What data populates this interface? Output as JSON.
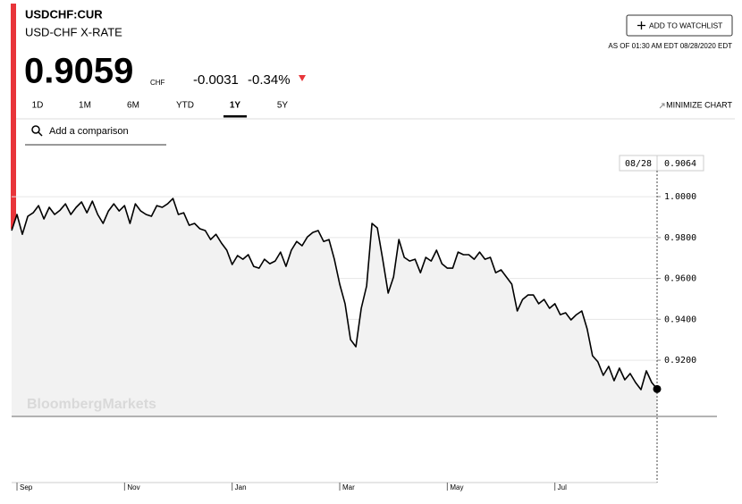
{
  "header": {
    "ticker": "USDCHF:CUR",
    "name": "USD-CHF X-RATE",
    "price": "0.9059",
    "currency": "CHF",
    "change": "-0.0031",
    "change_pct": "-0.34%",
    "watchlist_button": "ADD TO WATCHLIST",
    "as_of": "AS OF 01:30 AM EDT 08/28/2020 EDT"
  },
  "tabs": [
    "1D",
    "1M",
    "6M",
    "YTD",
    "1Y",
    "5Y"
  ],
  "active_tab": "1Y",
  "minimize": "MINIMIZE CHART",
  "search_placeholder": "Add a comparison",
  "watermark": "BloombergMarkets",
  "crosshair": {
    "date": "08/28",
    "value": "0.9064"
  },
  "chart_data": {
    "type": "line",
    "color": "#000000",
    "area_color": "#f2f2f2",
    "categories": [
      null,
      "Sep",
      null,
      null,
      null,
      null,
      null,
      null,
      null,
      null,
      null,
      null,
      null,
      null,
      null,
      null,
      null,
      null,
      null,
      null,
      null,
      "Nov",
      null,
      null,
      null,
      null,
      null,
      null,
      null,
      null,
      null,
      null,
      null,
      null,
      null,
      null,
      null,
      null,
      null,
      null,
      null,
      "Jan",
      null,
      null,
      null,
      null,
      null,
      null,
      null,
      null,
      null,
      null,
      null,
      null,
      null,
      null,
      null,
      null,
      null,
      null,
      null,
      "Mar",
      null,
      null,
      null,
      null,
      null,
      null,
      null,
      null,
      null,
      null,
      null,
      null,
      null,
      null,
      null,
      null,
      null,
      null,
      null,
      "May",
      null,
      null,
      null,
      null,
      null,
      null,
      null,
      null,
      null,
      null,
      null,
      null,
      null,
      null,
      null,
      null,
      null,
      null,
      null,
      "Jul",
      null,
      null,
      null,
      null,
      null,
      null,
      null,
      null,
      null,
      null,
      null,
      null,
      null,
      null,
      null,
      null,
      null,
      null,
      null
    ],
    "values": [
      0.9834,
      0.9913,
      0.9816,
      0.9904,
      0.9921,
      0.9956,
      0.9891,
      0.9948,
      0.9913,
      0.9934,
      0.9965,
      0.9913,
      0.9948,
      0.9974,
      0.9921,
      0.9978,
      0.9913,
      0.9869,
      0.993,
      0.9965,
      0.993,
      0.9956,
      0.9869,
      0.9965,
      0.993,
      0.9913,
      0.9904,
      0.9956,
      0.9948,
      0.9965,
      0.9991,
      0.9913,
      0.9921,
      0.986,
      0.9869,
      0.9843,
      0.9834,
      0.979,
      0.9816,
      0.9773,
      0.9738,
      0.9668,
      0.9712,
      0.9694,
      0.9716,
      0.9659,
      0.965,
      0.9694,
      0.9672,
      0.9685,
      0.9729,
      0.9659,
      0.9738,
      0.9781,
      0.976,
      0.9803,
      0.9825,
      0.9834,
      0.9781,
      0.979,
      0.9694,
      0.9572,
      0.9476,
      0.9301,
      0.9266,
      0.9454,
      0.9563,
      0.9869,
      0.9847,
      0.9694,
      0.9528,
      0.9607,
      0.979,
      0.9703,
      0.9685,
      0.9694,
      0.9628,
      0.9703,
      0.9685,
      0.9738,
      0.9672,
      0.965,
      0.965,
      0.9729,
      0.9716,
      0.9716,
      0.9694,
      0.9729,
      0.9694,
      0.9703,
      0.9628,
      0.9642,
      0.9607,
      0.9572,
      0.9441,
      0.9497,
      0.9519,
      0.9519,
      0.9476,
      0.9497,
      0.9454,
      0.9476,
      0.9423,
      0.9432,
      0.9397,
      0.9423,
      0.9441,
      0.9353,
      0.9222,
      0.9192,
      0.9126,
      0.917,
      0.91,
      0.9161,
      0.9104,
      0.9135,
      0.9091,
      0.9056,
      0.9148,
      0.9091,
      0.9059
    ],
    "ylim": [
      0.8925,
      1.0197
    ],
    "yticks": [
      {
        "value": 0.92,
        "label": "0.9200"
      },
      {
        "value": 0.94,
        "label": "0.9400"
      },
      {
        "value": 0.96,
        "label": "0.9600"
      },
      {
        "value": 0.98,
        "label": "0.9800"
      },
      {
        "value": 1.0,
        "label": "1.0000"
      }
    ],
    "grid": true
  }
}
